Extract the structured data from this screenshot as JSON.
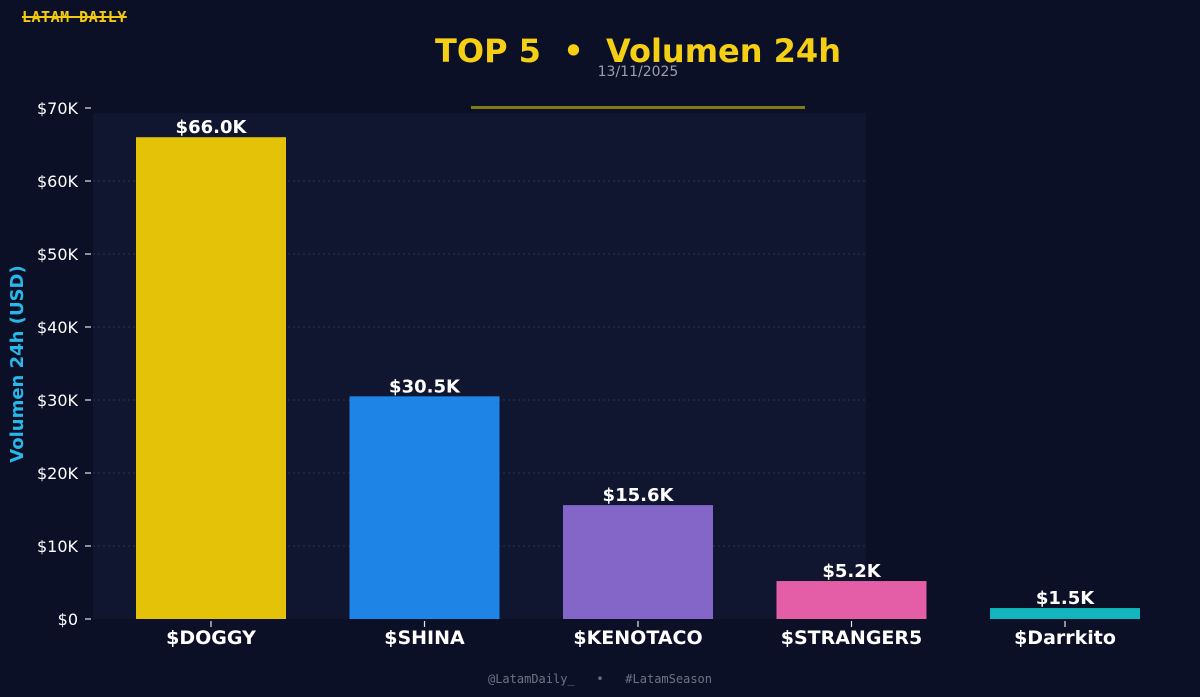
{
  "brand": "LATAM DAILY",
  "header": {
    "title": "TOP 5  •  Volumen 24h",
    "date": "13/11/2025"
  },
  "footer": {
    "handle": "@LatamDaily_",
    "separator": "•",
    "hashtag": "#LatamSeason"
  },
  "colors": {
    "background": "#0b1027",
    "plot_background": "#101630",
    "title": "#f5cf14",
    "ylabel": "#29b6e8",
    "text": "#ffffff"
  },
  "chart_data": {
    "type": "bar",
    "title": "TOP 5  •  Volumen 24h",
    "subtitle": "13/11/2025",
    "xlabel": "",
    "ylabel": "Volumen 24h (USD)",
    "ylim": [
      0,
      70000
    ],
    "yticks": [
      0,
      10000,
      20000,
      30000,
      40000,
      50000,
      60000,
      70000
    ],
    "ytick_labels": [
      "$0",
      "$10K",
      "$20K",
      "$30K",
      "$40K",
      "$50K",
      "$60K",
      "$70K"
    ],
    "grid": true,
    "categories": [
      "$DOGGY",
      "$SHINA",
      "$KENOTACO",
      "$STRANGER5",
      "$Darrkito"
    ],
    "values": [
      66000,
      30500,
      15600,
      5200,
      1500
    ],
    "value_labels": [
      "$66.0K",
      "$30.5K",
      "$15.6K",
      "$5.2K",
      "$1.5K"
    ],
    "bar_colors": [
      "#e3c208",
      "#1e84e6",
      "#8466c9",
      "#e35ea6",
      "#12b4be"
    ]
  }
}
